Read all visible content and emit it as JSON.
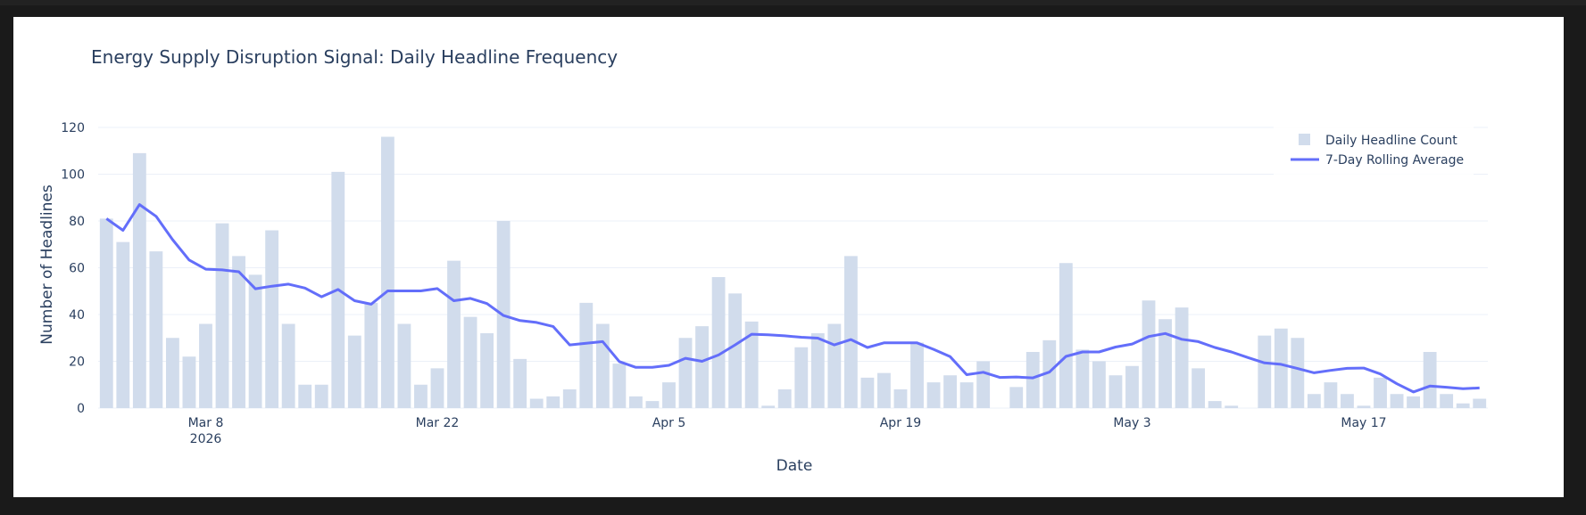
{
  "chart_data": {
    "type": "bar",
    "title": "Energy Supply Disruption Signal: Daily Headline Frequency",
    "xlabel": "Date",
    "ylabel": "Number of Headlines",
    "x_start": "2026-03-02",
    "x_ticks": [
      {
        "label": "Mar 8",
        "sub": "2026",
        "index": 6
      },
      {
        "label": "Mar 22",
        "sub": "",
        "index": 20
      },
      {
        "label": "Apr 5",
        "sub": "",
        "index": 34
      },
      {
        "label": "Apr 19",
        "sub": "",
        "index": 48
      },
      {
        "label": "May 3",
        "sub": "",
        "index": 62
      },
      {
        "label": "May 17",
        "sub": "",
        "index": 76
      }
    ],
    "ylim": [
      0,
      120
    ],
    "y_ticks": [
      0,
      20,
      40,
      60,
      80,
      100,
      120
    ],
    "grid": true,
    "legend_position": "top-right",
    "colors": {
      "bar": "#d1dcec",
      "line": "#636efa",
      "grid": "#ebf0f8",
      "text": "#2a3f5f"
    },
    "series": [
      {
        "name": "Daily Headline Count",
        "type": "bar",
        "values": [
          81,
          71,
          109,
          67,
          30,
          22,
          36,
          79,
          65,
          57,
          76,
          36,
          10,
          10,
          101,
          31,
          45,
          116,
          36,
          10,
          17,
          63,
          39,
          32,
          80,
          21,
          4,
          5,
          8,
          45,
          36,
          19,
          5,
          3,
          11,
          30,
          35,
          56,
          49,
          37,
          1,
          8,
          26,
          32,
          36,
          65,
          13,
          15,
          8,
          28,
          11,
          14,
          11,
          20,
          0,
          9,
          24,
          29,
          62,
          25,
          20,
          14,
          18,
          46,
          38,
          43,
          17,
          3,
          1,
          0,
          31,
          34,
          30,
          6,
          11,
          6,
          1,
          13,
          6,
          5,
          24,
          6,
          2,
          4
        ]
      },
      {
        "name": "7-Day Rolling Average",
        "type": "line",
        "values": [
          81,
          76,
          87,
          82,
          72,
          63.3,
          59.4,
          59.1,
          58.3,
          51,
          52.1,
          53,
          51.3,
          47.6,
          50.7,
          45.9,
          44.4,
          50.1,
          50.1,
          50.1,
          51.1,
          45.9,
          46.9,
          44.7,
          39.6,
          37.4,
          36.6,
          34.9,
          27,
          27.7,
          28.4,
          19.9,
          17.4,
          17.4,
          18.3,
          21.3,
          20,
          22.7,
          27,
          31.6,
          31.3,
          30.9,
          30.3,
          29.9,
          27,
          29.3,
          25.9,
          27.9,
          27.9,
          27.9,
          25.1,
          22,
          14.3,
          15.3,
          13.1,
          13.3,
          12.9,
          15.4,
          22.1,
          24,
          24,
          26.1,
          27.4,
          30.6,
          31.9,
          29.4,
          28.4,
          25.9,
          24,
          21.6,
          19.3,
          18.7,
          16.9,
          15.1,
          16.1,
          17,
          17.1,
          14.6,
          10.4,
          6.9,
          9.4,
          8.9,
          8.3,
          8.6
        ]
      }
    ]
  }
}
